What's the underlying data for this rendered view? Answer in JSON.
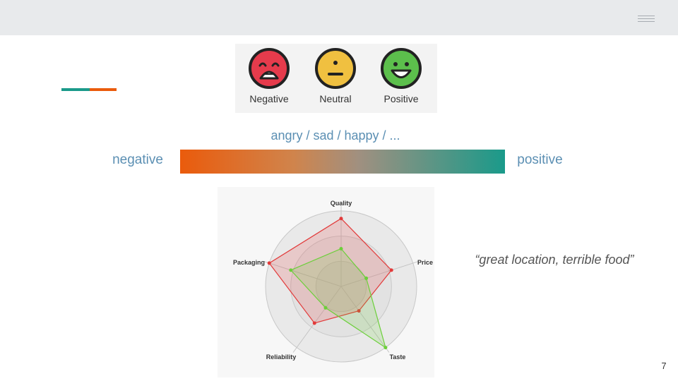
{
  "slide": {
    "page_number": "7"
  },
  "colors": {
    "negative": "#ea5b0c",
    "positive": "#1a9a8a",
    "label_blue": "#5b8fb3",
    "face_negative": "#e63b4c",
    "face_neutral": "#f0c040",
    "face_positive": "#5cbf4c",
    "radar_red": "#e23a3a",
    "radar_green": "#6ccf3a"
  },
  "emotions": [
    {
      "label": "Negative",
      "icon": "laughing-crying-face-icon"
    },
    {
      "label": "Neutral",
      "icon": "neutral-face-icon"
    },
    {
      "label": "Positive",
      "icon": "grinning-face-icon"
    }
  ],
  "emotion_caption": "angry / sad / happy / ...",
  "scale": {
    "negative_label": "negative",
    "positive_label": "positive"
  },
  "quote": "“great location, terrible food”",
  "chart_data": {
    "type": "radar",
    "axes": [
      "Quality",
      "Price",
      "Taste",
      "Reliability",
      "Packaging"
    ],
    "series": [
      {
        "values": [
          0.9,
          0.7,
          0.4,
          0.6,
          1.0
        ]
      },
      {
        "values": [
          0.5,
          0.35,
          1.0,
          0.35,
          0.7
        ]
      }
    ],
    "range": [
      0,
      1
    ],
    "rings": 3,
    "grid": true
  }
}
